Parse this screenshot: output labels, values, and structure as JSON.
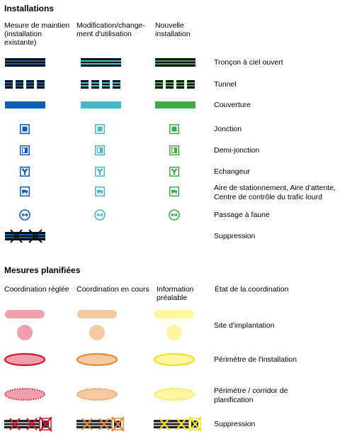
{
  "installations": {
    "title": "Installations",
    "columns": [
      [
        "Mesure de maintien",
        "(installation",
        "existante)"
      ],
      [
        "Modification/change-",
        "ment d'utilisation"
      ],
      [
        "Nouvelle",
        "installation"
      ]
    ],
    "colors": [
      "#0f5fb3",
      "#45b8c8",
      "#3fab48"
    ],
    "accent_cyan": "#2ec8de",
    "rows": [
      {
        "label": "Tronçon à ciel ouvert",
        "icon": "open-section-line"
      },
      {
        "label": "Tunnel",
        "icon": "tunnel-dashed-line"
      },
      {
        "label": "Couverture",
        "icon": "cover-bar"
      },
      {
        "label": "Jonction",
        "icon": "junction-icon"
      },
      {
        "label": "Demi-jonction",
        "icon": "half-junction-icon"
      },
      {
        "label": "Echangeur",
        "icon": "interchange-icon"
      },
      {
        "label": [
          "Aire de stationnement, Aire d'attente,",
          "Centre de contrôle du trafic lourd"
        ],
        "icon": "truck-parking-icon"
      },
      {
        "label": "Passage à faune",
        "icon": "wildlife-crossing-icon"
      },
      {
        "label": "Suppression",
        "icon": "removal-cross-icon"
      }
    ]
  },
  "planned": {
    "title": "Mesures planifiées",
    "columns": [
      [
        "Coordination réglée"
      ],
      [
        "Coordination en cours"
      ],
      [
        "Information",
        "préalable"
      ],
      [
        "État de la coordination"
      ]
    ],
    "fill_colors": [
      "#f0a0ac",
      "#f5c9a2",
      "#fdf5a0"
    ],
    "stroke_colors": [
      "#d4182c",
      "#e48a3a",
      "#f2e21c"
    ],
    "rows": [
      {
        "label": "Site d'implantation",
        "icon": "site-symbol"
      },
      {
        "label": "Périmètre de l'installation",
        "icon": "perimeter-ellipse"
      },
      {
        "label": [
          "Périmètre / corridor de",
          "planification"
        ],
        "icon": "planning-corridor-ellipse"
      },
      {
        "label": "Suppression",
        "icon": "removal-cross-icon"
      }
    ]
  }
}
